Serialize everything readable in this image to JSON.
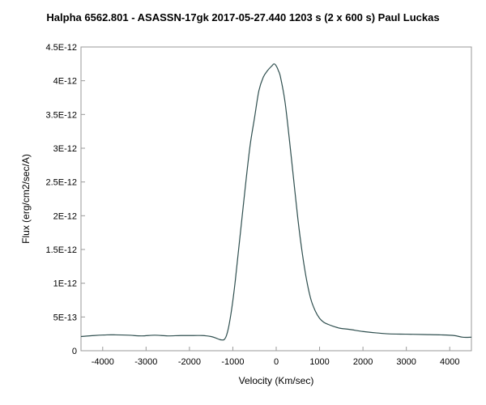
{
  "chart_data": {
    "type": "line",
    "title": "Halpha 6562.801 - ASASSN-17gk   2017-05-27.440   1203 s (2 x 600 s)   Paul Luckas",
    "xlabel": "Velocity (Km/sec)",
    "ylabel": "Flux (erg/cm2/sec/A)",
    "xlim": [
      -4500,
      4500
    ],
    "ylim": [
      0,
      4.5e-12
    ],
    "x_ticks": [
      -4000,
      -3000,
      -2000,
      -1000,
      0,
      1000,
      2000,
      3000,
      4000
    ],
    "x_tick_labels": [
      "-4000",
      "-3000",
      "-2000",
      "-1000",
      "0",
      "1000",
      "2000",
      "3000",
      "4000"
    ],
    "y_ticks": [
      0,
      5e-13,
      1e-12,
      1.5e-12,
      2e-12,
      2.5e-12,
      3e-12,
      3.5e-12,
      4e-12,
      4.5e-12
    ],
    "y_tick_labels": [
      "0",
      "5E-13",
      "1E-12",
      "1.5E-12",
      "2E-12",
      "2.5E-12",
      "3E-12",
      "3.5E-12",
      "4E-12",
      "4.5E-12"
    ],
    "grid": false,
    "line_color": "#2f4f4f",
    "series": [
      {
        "x": [
          -4500,
          -4200,
          -3900,
          -3700,
          -3400,
          -3100,
          -2800,
          -2500,
          -2200,
          -1900,
          -1700,
          -1500,
          -1400,
          -1300,
          -1250,
          -1200,
          -1150,
          -1100,
          -1050,
          -1000,
          -950,
          -900,
          -800,
          -700,
          -600,
          -500,
          -400,
          -300,
          -200,
          -100,
          -50,
          0,
          50,
          100,
          200,
          300,
          400,
          500,
          600,
          700,
          800,
          900,
          1000,
          1100,
          1200,
          1300,
          1400,
          1500,
          1700,
          2000,
          2300,
          2600,
          3000,
          3400,
          3800,
          4100,
          4300,
          4500
        ],
        "y": [
          2.1e-13,
          2.25e-13,
          2.35e-13,
          2.35e-13,
          2.3e-13,
          2.2e-13,
          2.3e-13,
          2.2e-13,
          2.25e-13,
          2.25e-13,
          2.25e-13,
          2.1e-13,
          1.9e-13,
          1.65e-13,
          1.6e-13,
          1.65e-13,
          2.2e-13,
          3.4e-13,
          5.2e-13,
          7.4e-13,
          1e-12,
          1.3e-12,
          1.9e-12,
          2.5e-12,
          3.05e-12,
          3.45e-12,
          3.85e-12,
          4.05e-12,
          4.15e-12,
          4.22e-12,
          4.25e-12,
          4.22e-12,
          4.15e-12,
          4.05e-12,
          3.7e-12,
          3.15e-12,
          2.55e-12,
          1.95e-12,
          1.45e-12,
          1.05e-12,
          7.6e-13,
          5.9e-13,
          4.8e-13,
          4.2e-13,
          3.9e-13,
          3.65e-13,
          3.45e-13,
          3.3e-13,
          3.15e-13,
          2.85e-13,
          2.65e-13,
          2.5e-13,
          2.45e-13,
          2.4e-13,
          2.35e-13,
          2.25e-13,
          2e-13,
          2e-13
        ]
      }
    ]
  }
}
